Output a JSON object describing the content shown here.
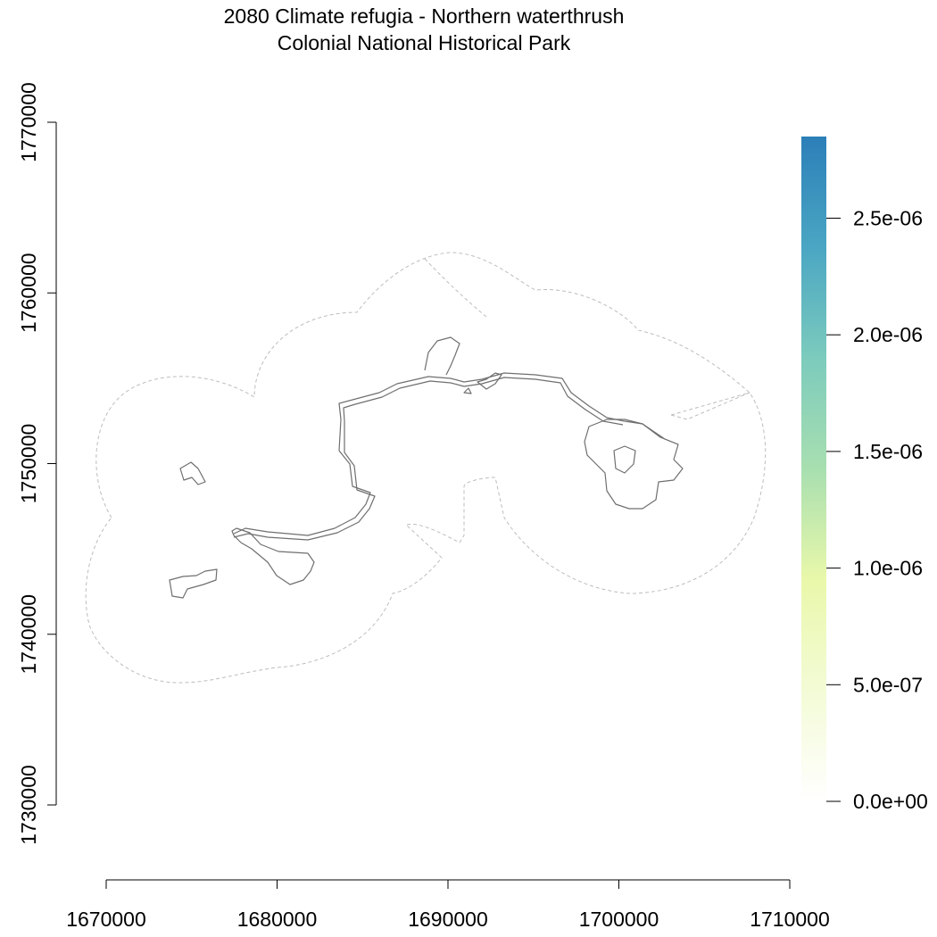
{
  "title": {
    "line1": "2080 Climate refugia - Northern waterthrush",
    "line2": "Colonial National Historical Park"
  },
  "x_axis": {
    "ticks": [
      "1670000",
      "1680000",
      "1690000",
      "1700000",
      "1710000"
    ]
  },
  "y_axis": {
    "ticks": [
      "1730000",
      "1740000",
      "1750000",
      "1760000",
      "1770000"
    ]
  },
  "legend": {
    "ticks": [
      "0.0e+00",
      "5.0e-07",
      "1.0e-06",
      "1.5e-06",
      "2.0e-06",
      "2.5e-06"
    ],
    "min": 0,
    "max": 2.85e-06,
    "colors": [
      "#ffffff",
      "#f3fbd6",
      "#e9f8aa",
      "#a8dfb0",
      "#7ccbbd",
      "#4aa6c3",
      "#2c7fb8"
    ]
  },
  "map": {
    "xlim": [
      1670000,
      1710000
    ],
    "ylim": [
      1730000,
      1770000
    ]
  }
}
